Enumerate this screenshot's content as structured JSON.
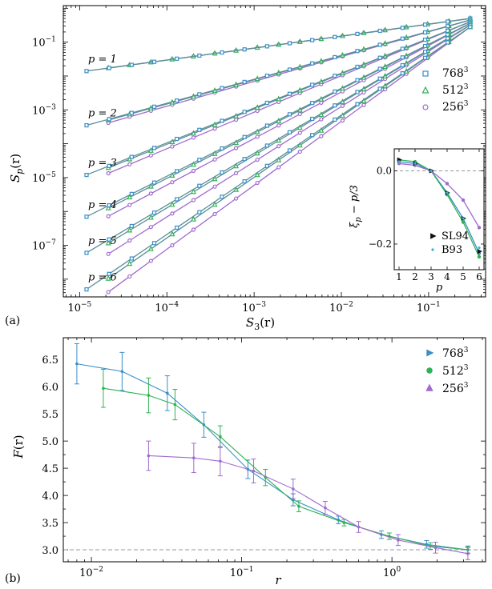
{
  "panel_labels": {
    "a": "(a)",
    "b": "(b)"
  },
  "colors": {
    "res768": "#3a8fc9",
    "res512": "#2fb255",
    "res256": "#a06ad0",
    "refline": "#999999",
    "series_line": "#5a8f96"
  },
  "chart_data": [
    {
      "type": "scatter",
      "title": "",
      "xlabel_main": "S",
      "xlabel_sub": "3",
      "xlabel_tail": "(r)",
      "ylabel_main": "S",
      "ylabel_sub": "p",
      "ylabel_tail": "(r)",
      "xscale": "log",
      "yscale": "log",
      "xlim": [
        6.5e-06,
        0.45
      ],
      "ylim": [
        3e-09,
        1.2
      ],
      "x_tick_labels": [
        {
          "value": 1e-05,
          "base": "10",
          "exp": "−5"
        },
        {
          "value": 0.0001,
          "base": "10",
          "exp": "−4"
        },
        {
          "value": 0.001,
          "base": "10",
          "exp": "−3"
        },
        {
          "value": 0.01,
          "base": "10",
          "exp": "−2"
        },
        {
          "value": 0.1,
          "base": "10",
          "exp": "−1"
        }
      ],
      "y_tick_labels": [
        {
          "value": 0.1,
          "base": "10",
          "exp": "−1"
        },
        {
          "value": 0.001,
          "base": "10",
          "exp": "−3"
        },
        {
          "value": 1e-05,
          "base": "10",
          "exp": "−5"
        },
        {
          "value": 1e-07,
          "base": "10",
          "exp": "−7"
        }
      ],
      "legend": [
        {
          "label": "768",
          "exp": "3",
          "marker": "square",
          "color": "#3a8fc9"
        },
        {
          "label": "512",
          "exp": "3",
          "marker": "triangle",
          "color": "#2fb255"
        },
        {
          "label": "256",
          "exp": "3",
          "marker": "circle",
          "color": "#a06ad0"
        }
      ],
      "series": [
        {
          "p": "1",
          "label": "p = 1",
          "x_start": 1.2e-05,
          "y_start": 0.014,
          "x_end": 0.3,
          "y_end": 0.5
        },
        {
          "p": "2",
          "label": "p = 2",
          "x_start": 1.2e-05,
          "y_start": 0.00035,
          "x_end": 0.3,
          "y_end": 0.45
        },
        {
          "p": "3",
          "label": "p = 3",
          "x_start": 1.2e-05,
          "y_start": 1.2e-05,
          "x_end": 0.3,
          "y_end": 0.4
        },
        {
          "p": "4",
          "label": "p = 4",
          "x_start": 1.2e-05,
          "y_start": 7e-07,
          "x_end": 0.3,
          "y_end": 0.36
        },
        {
          "p": "5",
          "label": "p = 5",
          "x_start": 1.2e-05,
          "y_start": 6e-08,
          "x_end": 0.3,
          "y_end": 0.32
        },
        {
          "p": "6",
          "label": "p = 6",
          "x_start": 1.2e-05,
          "y_start": 5e-09,
          "x_end": 0.3,
          "y_end": 0.28
        }
      ]
    },
    {
      "type": "line",
      "role": "inset",
      "xlabel": "p",
      "ylabel_main": "ξ",
      "ylabel_sub": "p",
      "ylabel_tail": " − p/3",
      "xlim": [
        0.7,
        6.3
      ],
      "ylim": [
        -0.27,
        0.06
      ],
      "x_ticks": [
        "1",
        "2",
        "3",
        "4",
        "5",
        "6"
      ],
      "y_tick_labels": [
        {
          "value": 0.0,
          "label": "0.0"
        },
        {
          "value": -0.2,
          "label": "−0.2"
        }
      ],
      "refline_y": 0,
      "legend": [
        {
          "label": "SL94",
          "marker": "triangle-right",
          "color": "#111111"
        },
        {
          "label": "B93",
          "marker": "dot",
          "color": "#3ab0d8"
        }
      ],
      "x": [
        1,
        2,
        3,
        4,
        5,
        6
      ],
      "series": [
        {
          "name": "768^3",
          "color": "#3a8fc9",
          "values": [
            0.025,
            0.02,
            0.0,
            -0.06,
            -0.13,
            -0.225
          ]
        },
        {
          "name": "512^3",
          "color": "#2fb255",
          "values": [
            0.03,
            0.025,
            0.0,
            -0.065,
            -0.14,
            -0.235
          ]
        },
        {
          "name": "256^3",
          "color": "#a06ad0",
          "values": [
            0.02,
            0.015,
            0.0,
            -0.035,
            -0.08,
            -0.155
          ]
        },
        {
          "name": "SL94",
          "color": "#111111",
          "values": [
            0.03,
            0.02,
            0.0,
            -0.06,
            -0.13,
            -0.22
          ]
        },
        {
          "name": "B93",
          "color": "#3ab0d8",
          "values": [
            0.025,
            0.02,
            0.0,
            -0.06,
            -0.13,
            -0.21
          ]
        }
      ]
    },
    {
      "type": "line",
      "title": "",
      "xlabel": "r",
      "ylabel_main": "F",
      "ylabel_tail": "(r)",
      "xscale": "log",
      "xlim": [
        0.0065,
        4.2
      ],
      "ylim": [
        2.78,
        6.9
      ],
      "x_tick_labels": [
        {
          "value": 0.01,
          "base": "10",
          "exp": "−2"
        },
        {
          "value": 0.1,
          "base": "10",
          "exp": "−1"
        },
        {
          "value": 1,
          "base": "10",
          "exp": "0"
        }
      ],
      "y_tick_labels": [
        "3.0",
        "3.5",
        "4.0",
        "4.5",
        "5.0",
        "5.5",
        "6.0",
        "6.5"
      ],
      "refline_y": 3.0,
      "legend": [
        {
          "label": "768",
          "exp": "3",
          "marker": "triangle-right",
          "color": "#3a8fc9"
        },
        {
          "label": "512",
          "exp": "3",
          "marker": "circle",
          "color": "#2fb255"
        },
        {
          "label": "256",
          "exp": "3",
          "marker": "triangle-up",
          "color": "#a06ad0"
        }
      ],
      "series": [
        {
          "name": "768^3",
          "color": "#3a8fc9",
          "x": [
            0.008,
            0.016,
            0.032,
            0.056,
            0.11,
            0.22,
            0.44,
            0.85,
            1.7,
            3.2
          ],
          "values": [
            6.42,
            6.28,
            5.88,
            5.3,
            4.48,
            3.92,
            3.55,
            3.28,
            3.1,
            3.0
          ],
          "err": [
            0.37,
            0.35,
            0.32,
            0.23,
            0.17,
            0.11,
            0.07,
            0.07,
            0.07,
            0.07
          ]
        },
        {
          "name": "512^3",
          "color": "#2fb255",
          "x": [
            0.012,
            0.024,
            0.036,
            0.072,
            0.144,
            0.24,
            0.48,
            0.96,
            1.8,
            3.2
          ],
          "values": [
            5.97,
            5.84,
            5.67,
            5.08,
            4.33,
            3.8,
            3.5,
            3.25,
            3.07,
            3.0
          ],
          "err": [
            0.35,
            0.32,
            0.28,
            0.2,
            0.15,
            0.1,
            0.06,
            0.06,
            0.06,
            0.06
          ]
        },
        {
          "name": "256^3",
          "color": "#a06ad0",
          "x": [
            0.024,
            0.048,
            0.072,
            0.12,
            0.22,
            0.36,
            0.6,
            1.1,
            1.95,
            3.2
          ],
          "values": [
            4.73,
            4.69,
            4.63,
            4.45,
            4.12,
            3.77,
            3.42,
            3.18,
            3.04,
            2.93
          ],
          "err": [
            0.27,
            0.27,
            0.27,
            0.22,
            0.18,
            0.12,
            0.1,
            0.1,
            0.1,
            0.11
          ]
        }
      ]
    }
  ]
}
